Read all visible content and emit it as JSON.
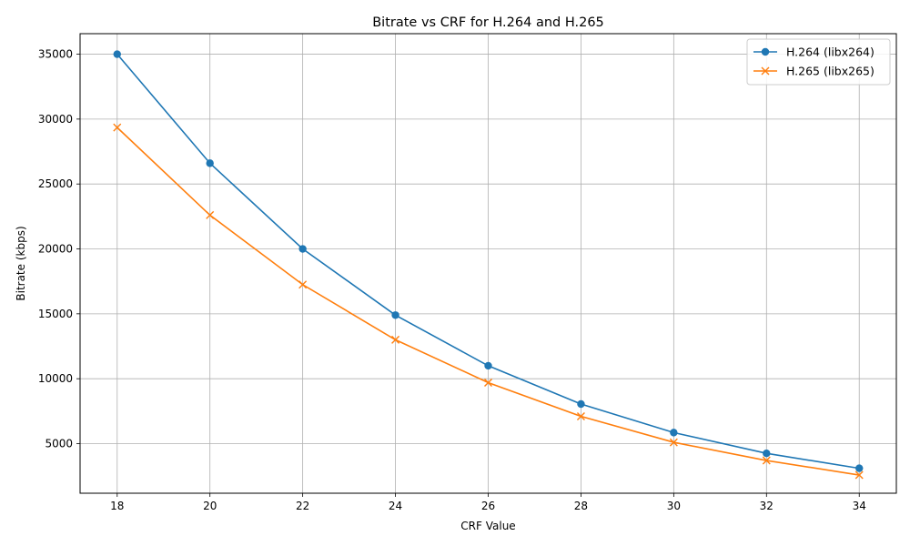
{
  "chart_data": {
    "type": "line",
    "title": "Bitrate vs CRF for H.264 and H.265",
    "xlabel": "CRF Value",
    "ylabel": "Bitrate (kbps)",
    "x": [
      18,
      20,
      22,
      24,
      26,
      28,
      30,
      32,
      34
    ],
    "x_ticks": [
      "18",
      "20",
      "22",
      "24",
      "26",
      "28",
      "30",
      "32",
      "34"
    ],
    "y_ticks": [
      "5000",
      "10000",
      "15000",
      "20000",
      "25000",
      "30000",
      "35000"
    ],
    "xlim": [
      17.2,
      34.8
    ],
    "ylim": [
      1180,
      36580
    ],
    "grid": true,
    "legend_position": "top-right",
    "series": [
      {
        "name": "H.264 (libx264)",
        "color": "#1f77b4",
        "marker": "circle",
        "values": [
          35000,
          26600,
          20000,
          14900,
          11000,
          8050,
          5850,
          4250,
          3100
        ]
      },
      {
        "name": "H.265 (libx265)",
        "color": "#ff7f0e",
        "marker": "x",
        "values": [
          29350,
          22600,
          17250,
          13000,
          9700,
          7100,
          5100,
          3700,
          2580
        ]
      }
    ]
  }
}
